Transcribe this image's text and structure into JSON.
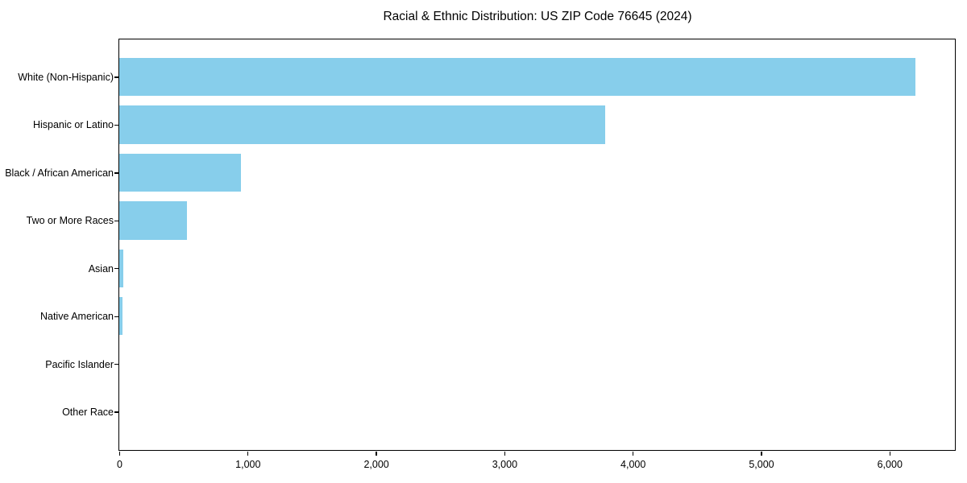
{
  "chart_data": {
    "type": "bar",
    "orientation": "horizontal",
    "title": "Racial & Ethnic Distribution: US ZIP Code 76645 (2024)",
    "categories": [
      "White (Non-Hispanic)",
      "Hispanic or Latino",
      "Black / African American",
      "Two or More Races",
      "Asian",
      "Native American",
      "Pacific Islander",
      "Other Race"
    ],
    "values": [
      6200,
      3785,
      950,
      530,
      30,
      25,
      0,
      0
    ],
    "bar_color": "#87CEEB",
    "xlabel": "",
    "ylabel": "",
    "xlim": [
      0,
      6510
    ],
    "xticks": [
      0,
      1000,
      2000,
      3000,
      4000,
      5000,
      6000
    ],
    "xtick_labels": [
      "0",
      "1,000",
      "2,000",
      "3,000",
      "4,000",
      "5,000",
      "6,000"
    ],
    "grid": false,
    "legend": false,
    "axis_color": "#000000",
    "text_color": "#000000",
    "background": "#ffffff"
  }
}
